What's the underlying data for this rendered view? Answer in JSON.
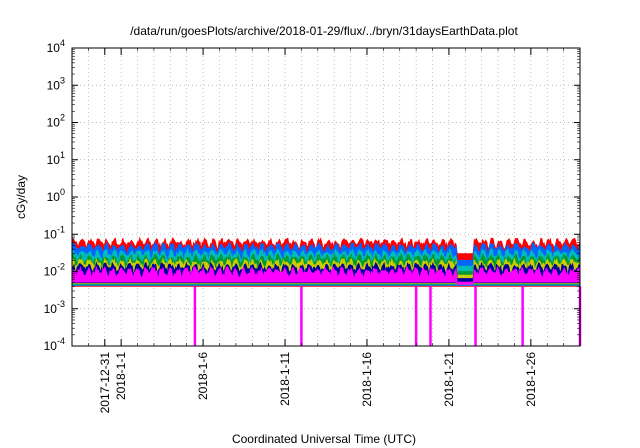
{
  "chart_data": {
    "type": "line",
    "title": "/data/run/goesPlots/archive/2018-01-29/flux/../bryn/31daysEarthData.plot",
    "xlabel": "Coordinated Universal Time (UTC)",
    "ylabel": "cGy/day",
    "y_scale": "log",
    "ylim": [
      0.0001,
      10000
    ],
    "xlim": [
      "2017-12-29",
      "2018-01-29"
    ],
    "grid": true,
    "y_ticks": [
      {
        "value": 0.0001,
        "base": "10",
        "exp": "-4"
      },
      {
        "value": 0.001,
        "base": "10",
        "exp": "-3"
      },
      {
        "value": 0.01,
        "base": "10",
        "exp": "-2"
      },
      {
        "value": 0.1,
        "base": "10",
        "exp": "-1"
      },
      {
        "value": 1,
        "base": "10",
        "exp": "0"
      },
      {
        "value": 10,
        "base": "10",
        "exp": "1"
      },
      {
        "value": 100,
        "base": "10",
        "exp": "2"
      },
      {
        "value": 1000,
        "base": "10",
        "exp": "3"
      },
      {
        "value": 10000,
        "base": "10",
        "exp": "4"
      }
    ],
    "x_ticks": [
      {
        "date": "2017-12-31",
        "label": "2017-12-31"
      },
      {
        "date": "2018-01-01",
        "label": "2018-1-1"
      },
      {
        "date": "2018-01-06",
        "label": "2018-1-6"
      },
      {
        "date": "2018-01-11",
        "label": "2018-1-11"
      },
      {
        "date": "2018-01-16",
        "label": "2018-1-16"
      },
      {
        "date": "2018-01-21",
        "label": "2018-1-21"
      },
      {
        "date": "2018-01-26",
        "label": "2018-1-26"
      }
    ],
    "data_gap": [
      "2018-01-21 12:00",
      "2018-01-22 12:00"
    ],
    "series": [
      {
        "color": "#ff0000",
        "base": 0.06,
        "gap_value": 0.03
      },
      {
        "color": "#0066ff",
        "base": 0.045,
        "gap_value": 0.02
      },
      {
        "color": "#00bbbb",
        "base": 0.03,
        "gap_value": 0.014
      },
      {
        "color": "#009933",
        "base": 0.022,
        "gap_value": 0.01
      },
      {
        "color": "#cccc00",
        "base": 0.017,
        "gap_value": 0.008
      },
      {
        "color": "#000099",
        "base": 0.013,
        "gap_value": 0.0065
      },
      {
        "color": "#ff00ff",
        "base": 0.01,
        "gap_value": 0.0045
      }
    ],
    "series_floor": 0.004,
    "dips": [
      {
        "date": "2018-01-05 12:00",
        "value": 0.0001
      },
      {
        "date": "2018-01-12 00:00",
        "value": 0.0001
      },
      {
        "date": "2018-01-19 00:00",
        "value": 0.0001
      },
      {
        "date": "2018-01-19 21:00",
        "value": 0.0001
      },
      {
        "date": "2018-01-22 15:00",
        "value": 0.0001
      },
      {
        "date": "2018-01-25 12:00",
        "value": 0.0001
      },
      {
        "date": "2018-01-29 00:00",
        "value": 0.0001
      }
    ]
  }
}
